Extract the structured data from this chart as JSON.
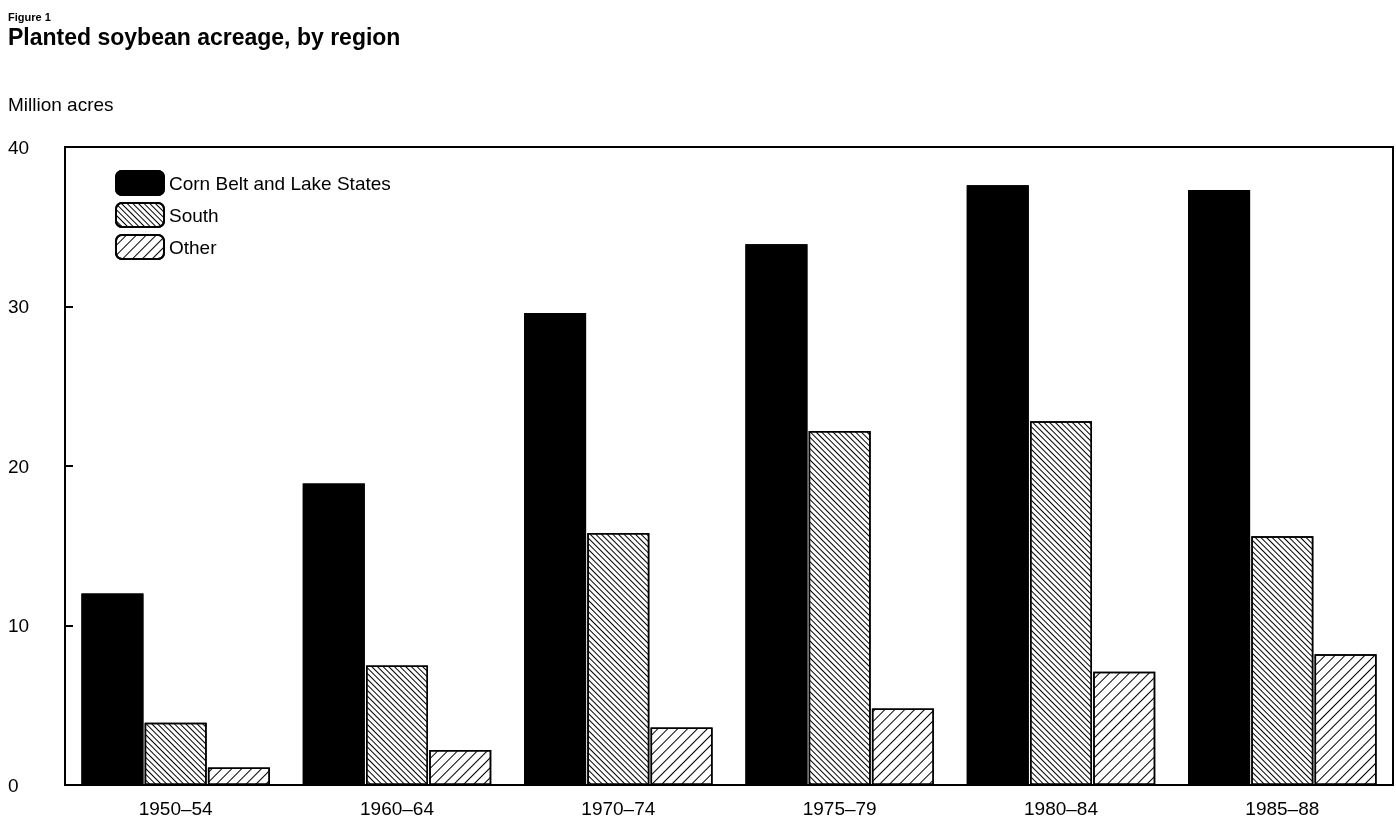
{
  "chart_data": {
    "type": "bar",
    "title": "Planted soybean acreage, by region",
    "subtitle": "Figure 1",
    "ylabel": "Million acres",
    "categories": [
      "1950–54",
      "1960–64",
      "1970–74",
      "1975–79",
      "1980–84",
      "1985–88"
    ],
    "series": [
      {
        "name": "Corn Belt and Lake States",
        "color": "#000000",
        "values": [
          12.0,
          18.9,
          29.6,
          33.9,
          37.6,
          37.3
        ]
      },
      {
        "name": "South",
        "color": "#ffffff",
        "values": [
          3.9,
          7.5,
          15.8,
          22.2,
          22.8,
          15.6
        ]
      },
      {
        "name": "Other",
        "color": "#ffffff",
        "values": [
          1.1,
          2.2,
          3.6,
          4.8,
          7.1,
          8.2
        ]
      }
    ],
    "ylim": [
      0,
      40
    ],
    "yticks": [
      0,
      10,
      20,
      30,
      40
    ],
    "grid": false,
    "legend": "top left"
  }
}
